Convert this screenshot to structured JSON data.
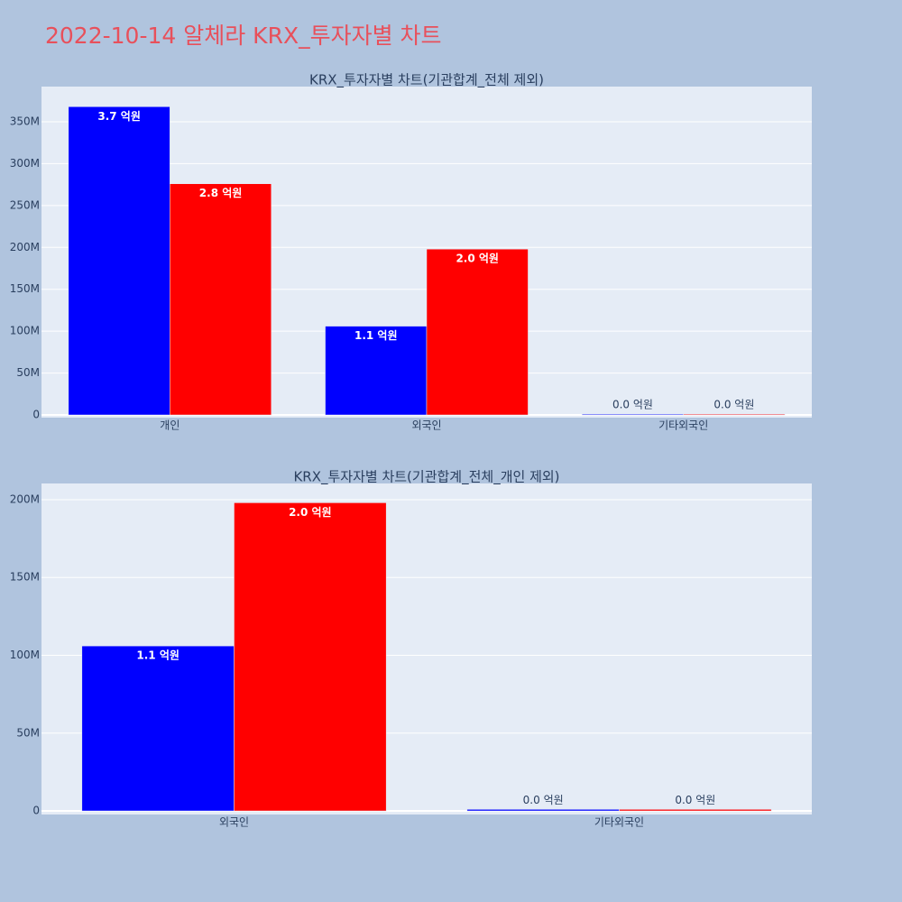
{
  "title": "2022-10-14 알체라 KRX_투자자별 차트",
  "chart_data": [
    {
      "type": "bar",
      "title": "KRX_투자자별 차트(기관합계_전체 제외)",
      "categories": [
        "개인",
        "외국인",
        "기타외국인"
      ],
      "series": [
        {
          "color": "#0000ff",
          "values": [
            368000000,
            106000000,
            1000000
          ],
          "value_labels": [
            "3.7 억원",
            "1.1 억원",
            "0.0 억원"
          ]
        },
        {
          "color": "#ff0000",
          "values": [
            276000000,
            198000000,
            1000000
          ],
          "value_labels": [
            "2.8 억원",
            "2.0 억원",
            "0.0 억원"
          ]
        }
      ],
      "ylim": [
        -3200000,
        392000000
      ],
      "yticks": [
        0,
        {
          "value": 50000000,
          "label": "50M"
        },
        {
          "value": 100000000,
          "label": "100M"
        },
        {
          "value": 150000000,
          "label": "150M"
        },
        {
          "value": 200000000,
          "label": "200M"
        },
        {
          "value": 250000000,
          "label": "250M"
        },
        {
          "value": 300000000,
          "label": "300M"
        },
        {
          "value": 350000000,
          "label": "350M"
        }
      ],
      "grid": true
    },
    {
      "type": "bar",
      "title": "KRX_투자자별 차트(기관합계_전체_개인 제외)",
      "categories": [
        "외국인",
        "기타외국인"
      ],
      "series": [
        {
          "color": "#0000ff",
          "values": [
            106000000,
            1000000
          ],
          "value_labels": [
            "1.1 억원",
            "0.0 억원"
          ]
        },
        {
          "color": "#ff0000",
          "values": [
            198000000,
            1000000
          ],
          "value_labels": [
            "2.0 억원",
            "0.0 억원"
          ]
        }
      ],
      "ylim": [
        -2300000,
        210400000
      ],
      "yticks": [
        0,
        {
          "value": 50000000,
          "label": "50M"
        },
        {
          "value": 100000000,
          "label": "100M"
        },
        {
          "value": 150000000,
          "label": "150M"
        },
        {
          "value": 200000000,
          "label": "200M"
        }
      ],
      "grid": true
    }
  ]
}
